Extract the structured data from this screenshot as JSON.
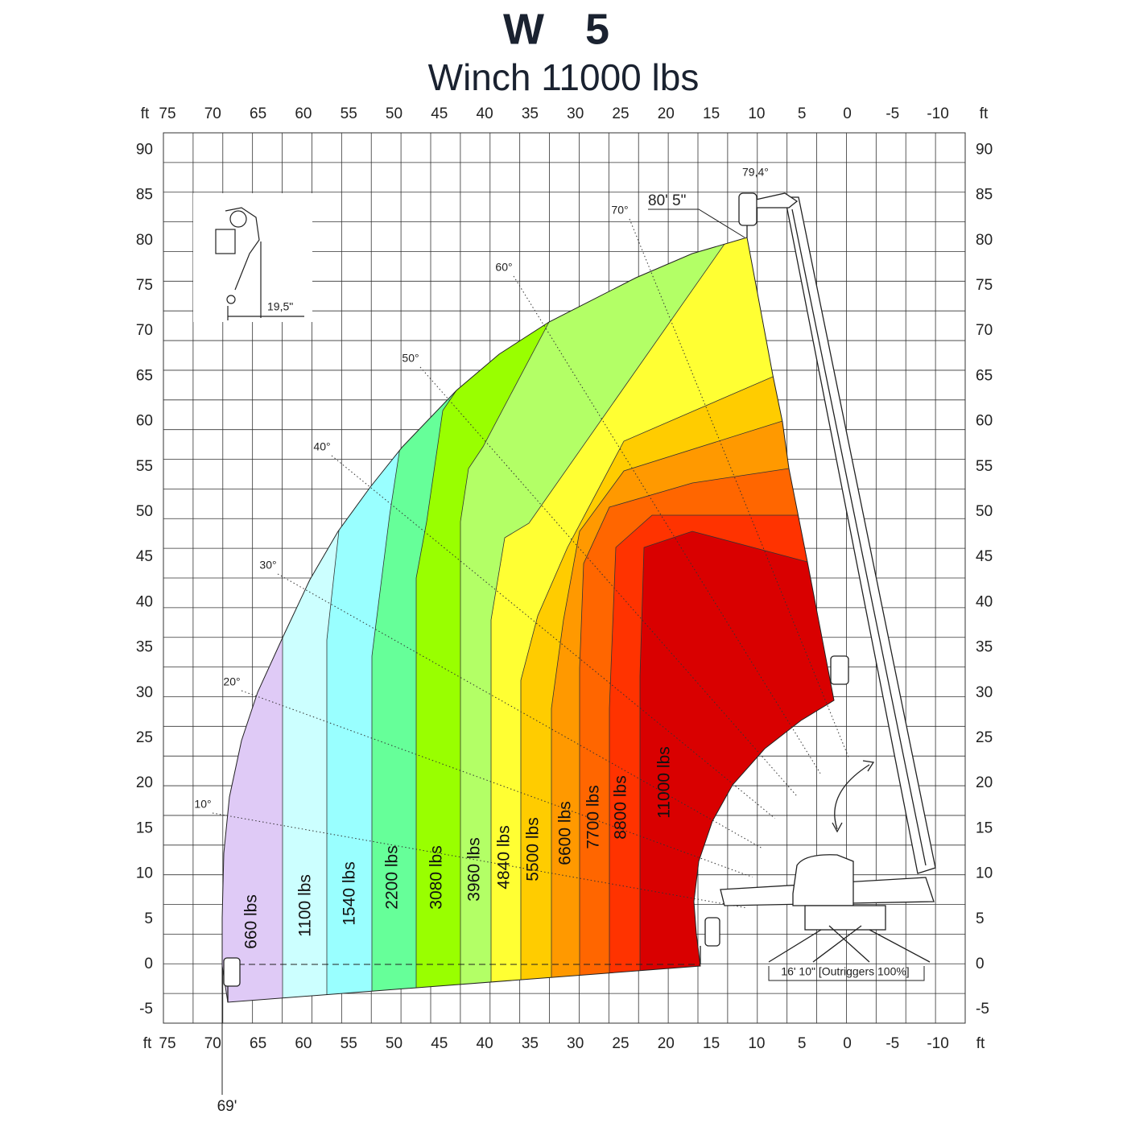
{
  "header": {
    "title": "W 5",
    "subtitle": "Winch 11000 lbs"
  },
  "axes": {
    "unit": "ft",
    "x_ticks": [
      75,
      70,
      65,
      60,
      55,
      50,
      45,
      40,
      35,
      30,
      25,
      20,
      15,
      10,
      5,
      0,
      -5,
      -10
    ],
    "y_ticks": [
      90,
      85,
      80,
      75,
      70,
      65,
      60,
      55,
      50,
      45,
      40,
      35,
      30,
      25,
      20,
      15,
      10,
      5,
      0,
      -5
    ]
  },
  "zones": [
    {
      "label": "660 lbs",
      "color": "#dfcaf6"
    },
    {
      "label": "1100 lbs",
      "color": "#ccffff"
    },
    {
      "label": "1540 lbs",
      "color": "#99ffff"
    },
    {
      "label": "2200 lbs",
      "color": "#66ff99"
    },
    {
      "label": "3080 lbs",
      "color": "#99ff00"
    },
    {
      "label": "3960 lbs",
      "color": "#b3ff66"
    },
    {
      "label": "4840 lbs",
      "color": "#ffff33"
    },
    {
      "label": "5500 lbs",
      "color": "#ffcc00"
    },
    {
      "label": "6600 lbs",
      "color": "#ff9900"
    },
    {
      "label": "7700 lbs",
      "color": "#ff6600"
    },
    {
      "label": "8800 lbs",
      "color": "#ff3300"
    },
    {
      "label": "11000 lbs",
      "color": "#d90000"
    }
  ],
  "angles": [
    "10°",
    "20°",
    "30°",
    "40°",
    "50°",
    "60°",
    "70°"
  ],
  "annotations": {
    "max_angle": "79,4°",
    "max_height": "80' 5\"",
    "hook_offset": "19,5\"",
    "max_reach": "69'",
    "outriggers": "16' 10\" [Outriggers 100%]"
  }
}
